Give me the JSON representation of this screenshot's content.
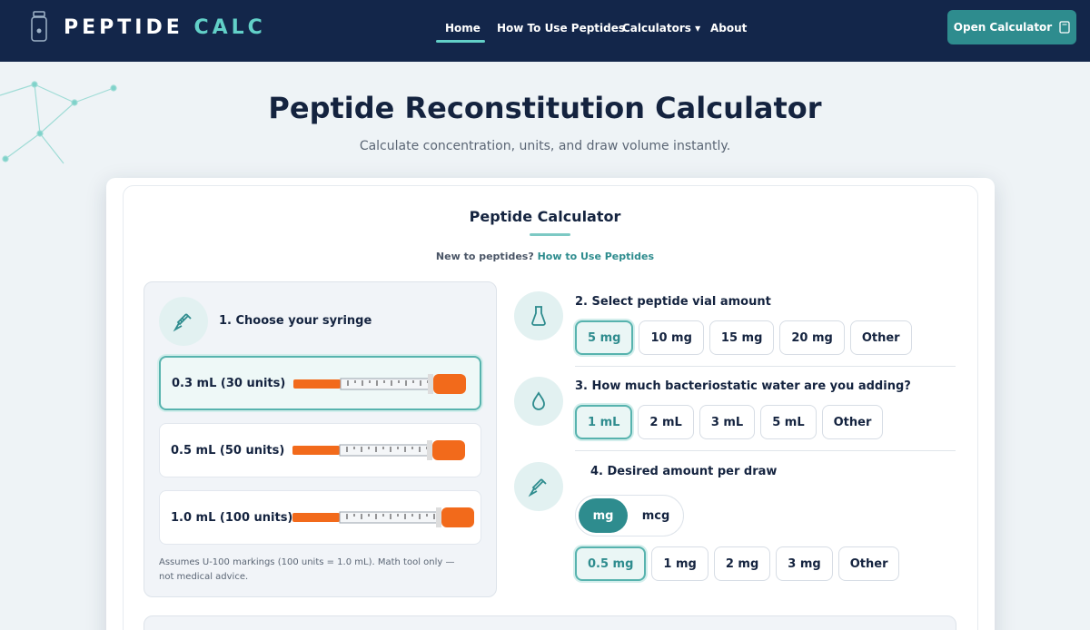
{
  "nav": {
    "brand_1": "PEPTIDE",
    "brand_2": "CALC",
    "links": [
      "Home",
      "How To Use Peptides",
      "Calculators",
      "About"
    ],
    "cta": "Open Calculator"
  },
  "hero": {
    "title": "Peptide Reconstitution Calculator",
    "subtitle": "Calculate concentration, units, and draw volume instantly."
  },
  "calculator": {
    "title": "Peptide Calculator",
    "intro": "New to peptides?",
    "intro_link": "How to Use Peptides",
    "syringe": {
      "heading": "1. Choose your syringe",
      "options": [
        "0.3 mL (30 units)",
        "0.5 mL (50 units)",
        "1.0 mL (100 units)"
      ],
      "note": "Assumes U-100 markings (100 units = 1.0 mL). Math tool only — not medical advice."
    },
    "vial": {
      "heading": "2. Select peptide vial amount",
      "options": [
        "5 mg",
        "10 mg",
        "15 mg",
        "20 mg",
        "Other"
      ]
    },
    "water": {
      "heading": "3. How much bacteriostatic water are you adding?",
      "options": [
        "1 mL",
        "2 mL",
        "3 mL",
        "5 mL",
        "Other"
      ]
    },
    "dose": {
      "heading": "4. Desired amount per draw",
      "units": [
        "mg",
        "mcg"
      ],
      "options": [
        "0.5 mg",
        "1 mg",
        "2 mg",
        "3 mg",
        "Other"
      ]
    }
  }
}
